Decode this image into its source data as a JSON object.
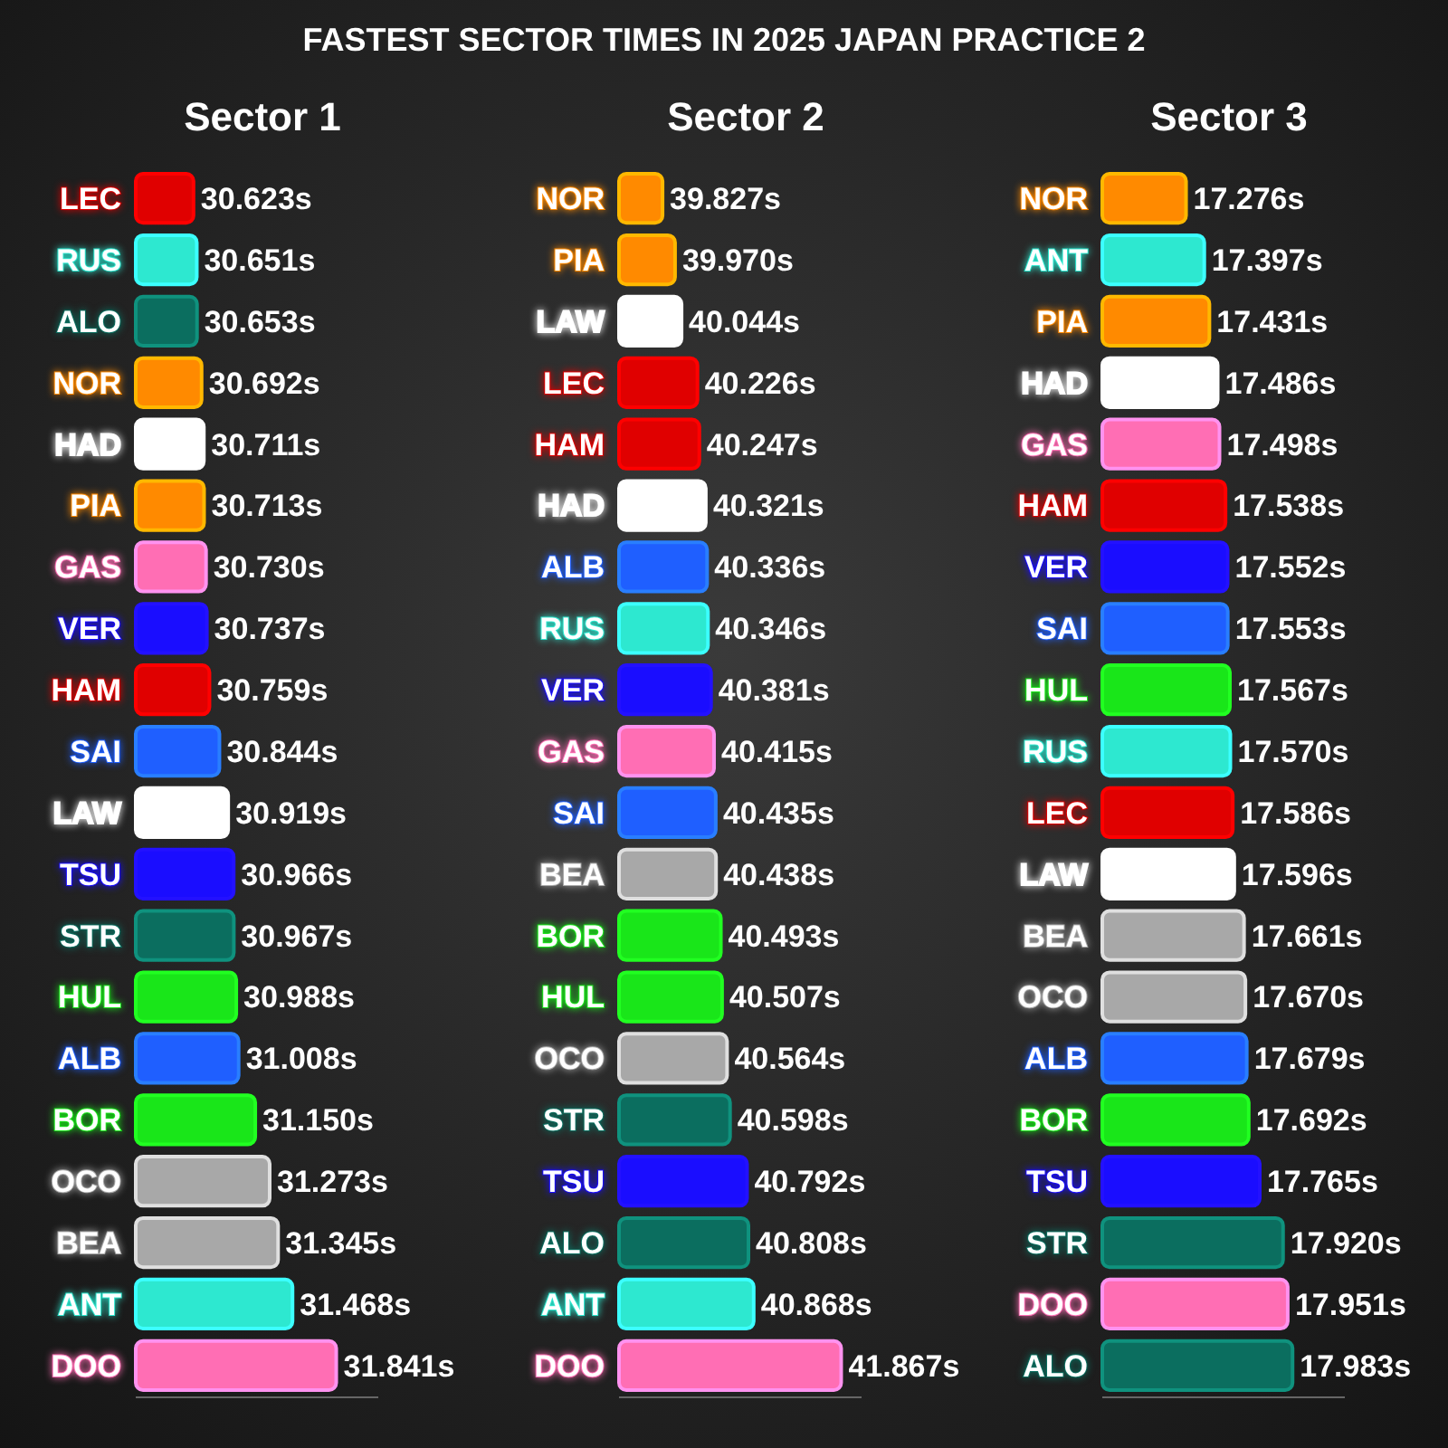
{
  "chart_data": [
    {
      "type": "other",
      "title": "FASTEST SECTOR TIMES IN 2025 JAPAN PRACTICE 2"
    },
    {
      "type": "bar",
      "orientation": "horizontal",
      "title": "Sector 1",
      "tick_labels": "y",
      "xlim": [
        30.13,
        32.2
      ],
      "categories": [
        "LEC",
        "RUS",
        "ALO",
        "NOR",
        "HAD",
        "PIA",
        "GAS",
        "VER",
        "HAM",
        "SAI",
        "LAW",
        "TSU",
        "STR",
        "HUL",
        "ALB",
        "BOR",
        "OCO",
        "BEA",
        "ANT",
        "DOO"
      ],
      "values": [
        30.623,
        30.651,
        30.653,
        30.692,
        30.711,
        30.713,
        30.73,
        30.737,
        30.759,
        30.844,
        30.919,
        30.966,
        30.967,
        30.988,
        31.008,
        31.15,
        31.273,
        31.345,
        31.468,
        31.841
      ],
      "value_labels": [
        "30.623s",
        "30.651s",
        "30.653s",
        "30.692s",
        "30.711s",
        "30.713s",
        "30.730s",
        "30.737s",
        "30.759s",
        "30.844s",
        "30.919s",
        "30.966s",
        "30.967s",
        "30.988s",
        "31.008s",
        "31.150s",
        "31.273s",
        "31.345s",
        "31.468s",
        "31.841s"
      ],
      "colors": [
        "#e00000",
        "#2de8d0",
        "#0b6e5f",
        "#ff8a00",
        "#ffffff",
        "#ff8a00",
        "#ff6eb4",
        "#1a0dff",
        "#e00000",
        "#1f5fff",
        "#ffffff",
        "#1a0dff",
        "#0b6e5f",
        "#19e619",
        "#1f5fff",
        "#19e619",
        "#a8a8a8",
        "#a8a8a8",
        "#2de8d0",
        "#ff6eb4"
      ]
    },
    {
      "type": "bar",
      "orientation": "horizontal",
      "title": "Sector 2",
      "tick_labels": "y",
      "xlim": [
        39.33,
        42.1
      ],
      "categories": [
        "NOR",
        "PIA",
        "LAW",
        "LEC",
        "HAM",
        "HAD",
        "ALB",
        "RUS",
        "VER",
        "GAS",
        "SAI",
        "BEA",
        "BOR",
        "HUL",
        "OCO",
        "STR",
        "TSU",
        "ALO",
        "ANT",
        "DOO"
      ],
      "values": [
        39.827,
        39.97,
        40.044,
        40.226,
        40.247,
        40.321,
        40.336,
        40.346,
        40.381,
        40.415,
        40.435,
        40.438,
        40.493,
        40.507,
        40.564,
        40.598,
        40.792,
        40.808,
        40.868,
        41.867
      ],
      "value_labels": [
        "39.827s",
        "39.970s",
        "40.044s",
        "40.226s",
        "40.247s",
        "40.321s",
        "40.336s",
        "40.346s",
        "40.381s",
        "40.415s",
        "40.435s",
        "40.438s",
        "40.493s",
        "40.507s",
        "40.564s",
        "40.598s",
        "40.792s",
        "40.808s",
        "40.868s",
        "41.867s"
      ],
      "colors": [
        "#ff8a00",
        "#ff8a00",
        "#ffffff",
        "#e00000",
        "#e00000",
        "#ffffff",
        "#1f5fff",
        "#2de8d0",
        "#1a0dff",
        "#ff6eb4",
        "#1f5fff",
        "#a8a8a8",
        "#19e619",
        "#19e619",
        "#a8a8a8",
        "#0b6e5f",
        "#1a0dff",
        "#0b6e5f",
        "#2de8d0",
        "#ff6eb4"
      ]
    },
    {
      "type": "bar",
      "orientation": "horizontal",
      "title": "Sector 3",
      "tick_labels": "y",
      "xlim": [
        16.72,
        18.33
      ],
      "categories": [
        "NOR",
        "ANT",
        "PIA",
        "HAD",
        "GAS",
        "HAM",
        "VER",
        "SAI",
        "HUL",
        "RUS",
        "LEC",
        "LAW",
        "BEA",
        "OCO",
        "ALB",
        "BOR",
        "TSU",
        "STR",
        "DOO",
        "ALO"
      ],
      "values": [
        17.276,
        17.397,
        17.431,
        17.486,
        17.498,
        17.538,
        17.552,
        17.553,
        17.567,
        17.57,
        17.586,
        17.596,
        17.661,
        17.67,
        17.679,
        17.692,
        17.765,
        17.92,
        17.951,
        17.983
      ],
      "value_labels": [
        "17.276s",
        "17.397s",
        "17.431s",
        "17.486s",
        "17.498s",
        "17.538s",
        "17.552s",
        "17.553s",
        "17.567s",
        "17.570s",
        "17.586s",
        "17.596s",
        "17.661s",
        "17.670s",
        "17.679s",
        "17.692s",
        "17.765s",
        "17.920s",
        "17.951s",
        "17.983s"
      ],
      "colors": [
        "#ff8a00",
        "#2de8d0",
        "#ff8a00",
        "#ffffff",
        "#ff6eb4",
        "#e00000",
        "#1a0dff",
        "#1f5fff",
        "#19e619",
        "#2de8d0",
        "#e00000",
        "#ffffff",
        "#a8a8a8",
        "#a8a8a8",
        "#1f5fff",
        "#19e619",
        "#1a0dff",
        "#0b6e5f",
        "#ff6eb4",
        "#0b6e5f"
      ]
    }
  ]
}
